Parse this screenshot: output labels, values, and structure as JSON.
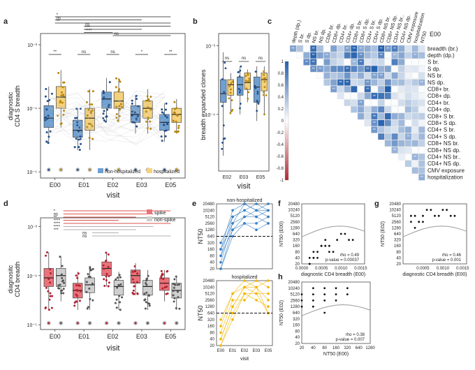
{
  "colors": {
    "nonhosp": "#6e9fd1",
    "nonhosp_dark": "#1f4e8c",
    "hosp": "#f5d27a",
    "hosp_dark": "#b8860b",
    "spike": "#e8737a",
    "spike_dark": "#b22234",
    "nonspike": "#cfcfcf",
    "nonspike_dark": "#555555",
    "sig_black": "#222222",
    "sig_red": "#d9534f",
    "sig_grey": "#b0b0b0",
    "n50_blue": "#3a7fc1",
    "n50_yellow": "#f2b705"
  },
  "chart_data": [
    {
      "panel": "a",
      "type": "box",
      "ylabel": "diagnostic\nCD4 S breadth",
      "xlabel": "visit",
      "categories": [
        "E00",
        "E01",
        "E02",
        "E03",
        "E05"
      ],
      "yscale": "log",
      "ylim": [
        8e-06,
        0.0015
      ],
      "yticks": [
        {
          "v": 0.001,
          "label": "10⁻³"
        },
        {
          "v": 0.0001,
          "label": "10⁻⁴"
        },
        {
          "v": 1e-05,
          "label": "10⁻⁵"
        }
      ],
      "series": [
        {
          "name": "non-hospitalized",
          "boxes": [
            {
              "q1": 5e-05,
              "med": 7e-05,
              "q3": 0.00011,
              "lo": 2.8e-05,
              "hi": 0.00022
            },
            {
              "q1": 3.5e-05,
              "med": 4.5e-05,
              "q3": 6.5e-05,
              "lo": 2.2e-05,
              "hi": 0.0001
            },
            {
              "q1": 0.0001,
              "med": 0.00014,
              "q3": 0.00018,
              "lo": 6e-05,
              "hi": 0.0003
            },
            {
              "q1": 6e-05,
              "med": 8e-05,
              "q3": 0.00011,
              "lo": 4e-05,
              "hi": 0.00016
            },
            {
              "q1": 4.5e-05,
              "med": 6e-05,
              "q3": 8e-05,
              "lo": 3e-05,
              "hi": 0.00012
            }
          ]
        },
        {
          "name": "hospitalized",
          "boxes": [
            {
              "q1": 0.0001,
              "med": 0.00015,
              "q3": 0.00022,
              "lo": 5e-05,
              "hi": 0.0004
            },
            {
              "q1": 4.5e-05,
              "med": 7e-05,
              "q3": 0.0001,
              "lo": 2.2e-05,
              "hi": 0.0002
            },
            {
              "q1": 0.0001,
              "med": 0.00013,
              "q3": 0.00018,
              "lo": 6e-05,
              "hi": 0.0003
            },
            {
              "q1": 7e-05,
              "med": 0.0001,
              "q3": 0.00013,
              "lo": 4e-05,
              "hi": 0.0002
            },
            {
              "q1": 6e-05,
              "med": 8e-05,
              "q3": 0.0001,
              "lo": 4e-05,
              "hi": 0.00014
            }
          ]
        }
      ],
      "significance": [
        {
          "from": 0,
          "to": 4,
          "label": "*"
        },
        {
          "from": 0,
          "to": 3,
          "label": "ns"
        },
        {
          "from": 0,
          "to": 4,
          "label": "**"
        },
        {
          "from": 1,
          "to": 4,
          "label": "ns"
        },
        {
          "from": 1,
          "to": 3,
          "label": "***"
        },
        {
          "from": 1,
          "to": 2,
          "label": "****"
        },
        {
          "from": 2,
          "to": 4,
          "label": "ns"
        }
      ],
      "pair_labels": [
        "**",
        "ns",
        "ns",
        "*",
        "**"
      ],
      "legend": [
        "non-hospitalized",
        "hospitalized"
      ]
    },
    {
      "panel": "b",
      "type": "box",
      "ylabel": "breadth expanded clones",
      "xlabel": "visit",
      "categories": [
        "E02",
        "E03",
        "E05"
      ],
      "yscale": "log",
      "ylim": [
        1.5e-05,
        0.0015
      ],
      "yticks": [
        {
          "v": 0.001,
          "label": "10⁻³"
        },
        {
          "v": 0.0001,
          "label": "10⁻⁴"
        }
      ],
      "boxes": [
        {
          "q1": 0.00015,
          "med": 0.0002,
          "q3": 0.00032,
          "lo": 2.5e-05,
          "hi": 0.0008
        },
        {
          "q1": 0.00019,
          "med": 0.00027,
          "q3": 0.00032,
          "lo": 0.0001,
          "hi": 0.0004
        },
        {
          "q1": 0.00019,
          "med": 0.00027,
          "q3": 0.00035,
          "lo": 0.0001,
          "hi": 0.0005
        },
        {
          "q1": 0.00023,
          "med": 0.00029,
          "q3": 0.0004,
          "lo": 0.00015,
          "hi": 0.00045
        },
        {
          "q1": 0.00015,
          "med": 0.00025,
          "q3": 0.00035,
          "lo": 8e-05,
          "hi": 0.0005
        },
        {
          "q1": 0.00022,
          "med": 0.00032,
          "q3": 0.0004,
          "lo": 0.0001,
          "hi": 0.0005
        }
      ],
      "pair_labels": [
        "ns",
        "ns",
        "ns"
      ]
    },
    {
      "panel": "c",
      "type": "heatmap",
      "corner_label": "E00",
      "variables": [
        "breadth (br.)",
        "depth (dp.)",
        "S br.",
        "S dp.",
        "NS br.",
        "NS dp.",
        "CD8+ br.",
        "CD8+ dp.",
        "CD4+ br.",
        "CD4+ dp.",
        "CD8+ S br.",
        "CD8+ S dp.",
        "CD4+ S br.",
        "CD4+ S dp.",
        "CD8+ NS br.",
        "CD8+ NS dp.",
        "CD4+ NS br..",
        "CD4+ NS dp.",
        "CMV exposure",
        "hospitalization"
      ],
      "columns": [
        "depth (dp.)",
        "S br.",
        "S dp.",
        "NS br.",
        "NS dp.",
        "CD8+ br.",
        "CD8+ dp.",
        "CD4+ br.",
        "CD4+ dp.",
        "CD8+ S br.",
        "CD8+ S dp.",
        "CD4+ S br.",
        "CD4+ S dp.",
        "CD8+ NS br.",
        "CD8+ NS dp.",
        "CD4+ NS br..",
        "CD4+ NS dp.",
        "CMV exposure",
        "hospitalization",
        "NT50"
      ],
      "colorbar": {
        "min": -1,
        "max": 1,
        "ticks": [
          "1",
          "0.8",
          "0.6",
          "0.4",
          "0.2",
          "0",
          "-0.2",
          "-0.4",
          "-0.6",
          "-0.8",
          "-1"
        ]
      }
    },
    {
      "panel": "d",
      "type": "box",
      "ylabel": "diagnositc\nCD4 breadth",
      "xlabel": "visit",
      "categories": [
        "E00",
        "E01",
        "E02",
        "E03",
        "E05"
      ],
      "yscale": "log",
      "ylim": [
        8e-06,
        0.0015
      ],
      "yticks": [
        {
          "v": 0.001,
          "label": "10⁻³"
        },
        {
          "v": 0.0001,
          "label": "10⁻⁴"
        },
        {
          "v": 1e-05,
          "label": "10⁻⁵"
        }
      ],
      "series": [
        {
          "name": "spike",
          "boxes": [
            {
              "q1": 6e-05,
              "med": 9e-05,
              "q3": 0.00014,
              "lo": 2e-05,
              "hi": 0.0003
            },
            {
              "q1": 3.5e-05,
              "med": 5e-05,
              "q3": 7e-05,
              "lo": 2e-05,
              "hi": 0.00012
            },
            {
              "q1": 0.0001,
              "med": 0.00014,
              "q3": 0.00019,
              "lo": 6e-05,
              "hi": 0.0003
            },
            {
              "q1": 7e-05,
              "med": 0.0001,
              "q3": 0.00013,
              "lo": 4e-05,
              "hi": 0.00018
            },
            {
              "q1": 5e-05,
              "med": 7e-05,
              "q3": 9e-05,
              "lo": 3e-05,
              "hi": 0.00013
            }
          ]
        },
        {
          "name": "non-spike",
          "boxes": [
            {
              "q1": 6e-05,
              "med": 0.0001,
              "q3": 0.00014,
              "lo": 3e-05,
              "hi": 0.00025
            },
            {
              "q1": 4.5e-05,
              "med": 6.5e-05,
              "q3": 9e-05,
              "lo": 2e-05,
              "hi": 0.00015
            },
            {
              "q1": 4e-05,
              "med": 6e-05,
              "q3": 8e-05,
              "lo": 2e-05,
              "hi": 0.00012
            },
            {
              "q1": 4e-05,
              "med": 6e-05,
              "q3": 8e-05,
              "lo": 2e-05,
              "hi": 0.00013
            },
            {
              "q1": 3.5e-05,
              "med": 5e-05,
              "q3": 7e-05,
              "lo": 2e-05,
              "hi": 0.0001
            }
          ]
        }
      ],
      "sig_labels": [
        "*",
        "ns",
        "**",
        "****",
        "****",
        "****",
        "***",
        "ns",
        "ns"
      ],
      "legend": [
        "spike",
        "non-spike"
      ]
    },
    {
      "panel": "e",
      "type": "line",
      "ylabel": "NT50",
      "xlabel": "visit",
      "categories": [
        "E00",
        "E01",
        "E02",
        "E03",
        "E05"
      ],
      "yticks": [
        "20480",
        "10240",
        "5120",
        "2560",
        "1280",
        "640",
        "320",
        "160",
        "80",
        "40",
        "20"
      ],
      "threshold": 640,
      "subplots": [
        {
          "title": "non-hospitalized",
          "lines": [
            [
              160,
              10240,
              20480,
              10240,
              20480
            ],
            [
              80,
              5120,
              10240,
              20480,
              10240
            ],
            [
              40,
              2560,
              5120,
              10240,
              5120
            ],
            [
              20,
              1280,
              2560,
              2560,
              5120
            ],
            [
              320,
              5120,
              10240,
              5120,
              10240
            ],
            [
              20,
              640,
              2560,
              1280,
              2560
            ],
            [
              80,
              1280,
              5120,
              5120,
              2560
            ],
            [
              160,
              2560,
              20480,
              10240,
              10240
            ]
          ]
        },
        {
          "title": "hospitalized",
          "lines": [
            [
              160,
              5120,
              20480,
              10240,
              20480
            ],
            [
              40,
              1280,
              10240,
              20480,
              10240
            ],
            [
              20,
              640,
              5120,
              5120,
              5120
            ],
            [
              80,
              2560,
              2560,
              10240,
              2560
            ],
            [
              320,
              5120,
              10240,
              5120,
              640
            ],
            [
              20,
              320,
              5120,
              2560,
              1280
            ],
            [
              40,
              1280,
              10240,
              10240,
              640
            ]
          ]
        }
      ]
    },
    {
      "panel": "f",
      "type": "scatter",
      "xlabel": "diagnostic CD4 breadth (E00)",
      "ylabel": "NT50 (E00)",
      "xticks": [
        "0.0000",
        "0.0005",
        "0.0010",
        "0.0015"
      ],
      "yticks": [
        "20480",
        "10240",
        "5120",
        "2560",
        "1280",
        "640",
        "320",
        "160",
        "80",
        "40",
        "20"
      ],
      "stats": [
        "rho = 0.49",
        "p-value = 0.00037"
      ],
      "x": [
        0.0002,
        0.0003,
        0.0004,
        0.0005,
        0.0006,
        0.0003,
        0.0007,
        0.0009,
        0.0011,
        0.0002,
        0.0004,
        0.0008,
        0.0012,
        0.0005,
        0.0003,
        0.0006,
        0.001,
        0.0013,
        0.0002,
        0.0007
      ],
      "y": [
        20,
        40,
        80,
        160,
        320,
        80,
        160,
        320,
        640,
        20,
        40,
        80,
        320,
        160,
        40,
        160,
        640,
        320,
        40,
        80
      ]
    },
    {
      "panel": "g",
      "type": "scatter",
      "xlabel": "diagnostic CD4 breadth (E00)",
      "ylabel": "NT50 (E02)",
      "xticks": [
        "0.0005",
        "0.0010",
        "0.0015"
      ],
      "yticks": [
        "20480",
        "10240",
        "5120",
        "2560",
        "1280",
        "640",
        "320",
        "160",
        "80",
        "40",
        "20"
      ],
      "stats": [
        "rho = 0.46",
        "p-value = 0.001"
      ],
      "x": [
        0.0002,
        0.0003,
        0.0004,
        0.0005,
        0.0006,
        0.0008,
        0.001,
        0.0012,
        0.0003,
        0.0005,
        0.0007,
        0.0009,
        0.0002,
        0.0004,
        0.0011,
        0.0013
      ],
      "y": [
        2560,
        5120,
        2560,
        5120,
        10240,
        5120,
        10240,
        5120,
        1280,
        2560,
        10240,
        5120,
        5120,
        2560,
        10240,
        5120
      ]
    },
    {
      "panel": "h",
      "type": "scatter",
      "xlabel": "NT50 (E00)",
      "ylabel": "NT50 (E02)",
      "xticks": [
        "20",
        "40",
        "80",
        "160",
        "320",
        "640",
        "1280"
      ],
      "yticks": [
        "20480",
        "10240",
        "5120",
        "2560",
        "1280",
        "640",
        "320",
        "160",
        "80",
        "40",
        "20"
      ],
      "stats": [
        "rho = 0.38",
        "p-value = 0.007"
      ],
      "x": [
        20,
        40,
        80,
        160,
        320,
        20,
        40,
        80,
        160,
        20,
        40,
        80,
        160,
        320,
        40,
        80
      ],
      "y": [
        2560,
        5120,
        5120,
        10240,
        5120,
        1280,
        2560,
        10240,
        2560,
        5120,
        10240,
        2560,
        5120,
        10240,
        1280,
        640
      ]
    }
  ],
  "panel_labels": [
    "a",
    "b",
    "c",
    "d",
    "e",
    "f",
    "g",
    "h"
  ]
}
